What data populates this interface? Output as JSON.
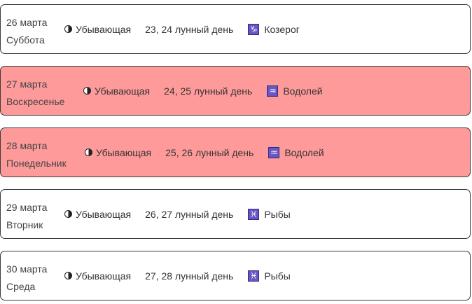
{
  "days": [
    {
      "date": "26 марта",
      "weekday": "Суббота",
      "phase": "Убывающая",
      "lunar_day": "23, 24 лунный день",
      "zodiac_icon": "♑",
      "zodiac": "Козерог",
      "weekend": false
    },
    {
      "date": "27 марта",
      "weekday": "Воскресенье",
      "phase": "Убывающая",
      "lunar_day": "24, 25 лунный день",
      "zodiac_icon": "♒",
      "zodiac": "Водолей",
      "weekend": true
    },
    {
      "date": "28 марта",
      "weekday": "Понедельник",
      "phase": "Убывающая",
      "lunar_day": "25, 26 лунный день",
      "zodiac_icon": "♒",
      "zodiac": "Водолей",
      "weekend": true
    },
    {
      "date": "29 марта",
      "weekday": "Вторник",
      "phase": "Убывающая",
      "lunar_day": "26, 27 лунный день",
      "zodiac_icon": "♓",
      "zodiac": "Рыбы",
      "weekend": false
    },
    {
      "date": "30 марта",
      "weekday": "Среда",
      "phase": "Убывающая",
      "lunar_day": "27, 28 лунный день",
      "zodiac_icon": "♓",
      "zodiac": "Рыбы",
      "weekend": false
    }
  ],
  "colors": {
    "weekend_bg": "#ff9a9a",
    "zodiac_icon_bg": "#6a55c4"
  }
}
